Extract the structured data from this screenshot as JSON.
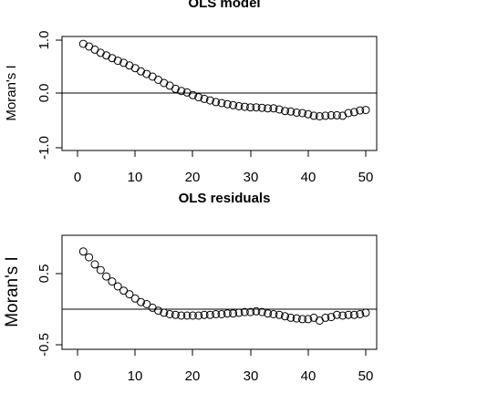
{
  "chart_data": [
    {
      "type": "scatter",
      "title": "OLS model",
      "xlabel": "",
      "ylabel": "Moran's I",
      "xlim": [
        0,
        51
      ],
      "ylim": [
        -1.05,
        1.05
      ],
      "xticks": [
        "0",
        "10",
        "20",
        "30",
        "40",
        "50"
      ],
      "yticks": [
        "-1.0",
        "0.0",
        "1.0"
      ],
      "hline": 0,
      "marker": "open-circle",
      "x": [
        1,
        2,
        3,
        4,
        5,
        6,
        7,
        8,
        9,
        10,
        11,
        12,
        13,
        14,
        15,
        16,
        17,
        18,
        19,
        20,
        21,
        22,
        23,
        24,
        25,
        26,
        27,
        28,
        29,
        30,
        31,
        32,
        33,
        34,
        35,
        36,
        37,
        38,
        39,
        40,
        41,
        42,
        43,
        44,
        45,
        46,
        47,
        48,
        49,
        50
      ],
      "y": [
        0.93,
        0.88,
        0.82,
        0.76,
        0.71,
        0.66,
        0.61,
        0.57,
        0.52,
        0.47,
        0.41,
        0.36,
        0.31,
        0.25,
        0.19,
        0.14,
        0.08,
        0.04,
        0.01,
        -0.04,
        -0.08,
        -0.11,
        -0.14,
        -0.17,
        -0.19,
        -0.21,
        -0.23,
        -0.25,
        -0.26,
        -0.27,
        -0.27,
        -0.28,
        -0.29,
        -0.29,
        -0.31,
        -0.34,
        -0.35,
        -0.37,
        -0.38,
        -0.4,
        -0.43,
        -0.44,
        -0.43,
        -0.42,
        -0.42,
        -0.43,
        -0.38,
        -0.36,
        -0.33,
        -0.32
      ]
    },
    {
      "type": "scatter",
      "title": "OLS residuals",
      "xlabel": "",
      "ylabel": "Moran's I",
      "xlim": [
        0,
        51
      ],
      "ylim": [
        -0.53,
        1.05
      ],
      "xticks": [
        "0",
        "10",
        "20",
        "30",
        "40",
        "50"
      ],
      "yticks": [
        "-0.5",
        "0.5"
      ],
      "hline": 0,
      "marker": "open-circle",
      "x": [
        1,
        2,
        3,
        4,
        5,
        6,
        7,
        8,
        9,
        10,
        11,
        12,
        13,
        14,
        15,
        16,
        17,
        18,
        19,
        20,
        21,
        22,
        23,
        24,
        25,
        26,
        27,
        28,
        29,
        30,
        31,
        32,
        33,
        34,
        35,
        36,
        37,
        38,
        39,
        40,
        41,
        42,
        43,
        44,
        45,
        46,
        47,
        48,
        49,
        50
      ],
      "y": [
        0.81,
        0.73,
        0.63,
        0.55,
        0.46,
        0.39,
        0.32,
        0.26,
        0.21,
        0.15,
        0.1,
        0.07,
        0.02,
        -0.02,
        -0.05,
        -0.07,
        -0.08,
        -0.09,
        -0.09,
        -0.09,
        -0.09,
        -0.08,
        -0.08,
        -0.07,
        -0.07,
        -0.06,
        -0.06,
        -0.05,
        -0.04,
        -0.04,
        -0.03,
        -0.04,
        -0.06,
        -0.07,
        -0.08,
        -0.1,
        -0.12,
        -0.13,
        -0.14,
        -0.14,
        -0.12,
        -0.16,
        -0.12,
        -0.11,
        -0.08,
        -0.09,
        -0.08,
        -0.08,
        -0.07,
        -0.05
      ]
    }
  ]
}
